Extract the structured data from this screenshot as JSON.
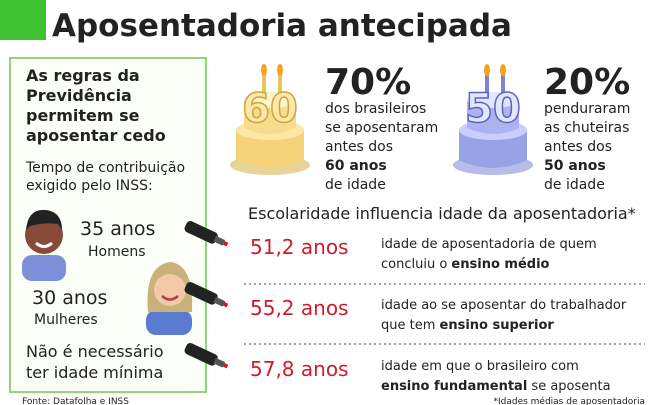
{
  "header": {
    "title": "Aposentadoria antecipada"
  },
  "rules": {
    "heading": [
      "As regras da",
      "Previdência",
      "permitem se",
      "aposentar cedo"
    ],
    "subheading": [
      "Tempo de contribuição",
      "exigido pelo INSS:"
    ],
    "men": {
      "years": "35 anos",
      "label": "Homens"
    },
    "women": {
      "years": "30 anos",
      "label": "Mulheres"
    },
    "note": [
      "Não é necessário",
      "ter idade mínima"
    ]
  },
  "stats": [
    {
      "cake_number": "60",
      "percent": "70%",
      "lines": [
        "dos brasileiros",
        "se aposentaram",
        "antes dos"
      ],
      "bold": "60 anos",
      "tail": "de idade"
    },
    {
      "cake_number": "50",
      "percent": "20%",
      "lines": [
        "penduraram",
        "as chuteiras",
        "antes dos"
      ],
      "bold": "50 anos",
      "tail": "de idade"
    }
  ],
  "education": {
    "title": "Escolaridade influencia idade da aposentadoria*",
    "rows": [
      {
        "age": "51,2 anos",
        "line1": "idade de aposentadoria de quem",
        "line2": "concluiu o ",
        "bold": "ensino médio",
        "after": ""
      },
      {
        "age": "55,2 anos",
        "line1": "idade ao se aposentar do trabalhador",
        "line2": "que tem ",
        "bold": "ensino superior",
        "after": ""
      },
      {
        "age": "57,8 anos",
        "line1": "idade em que o brasileiro com",
        "line2": "",
        "bold": "ensino fundamental",
        "after": " se aposenta"
      }
    ]
  },
  "footer": {
    "source": "Fonte: Datafolha e INSS",
    "note": "*Idades médias de aposentadoria"
  }
}
